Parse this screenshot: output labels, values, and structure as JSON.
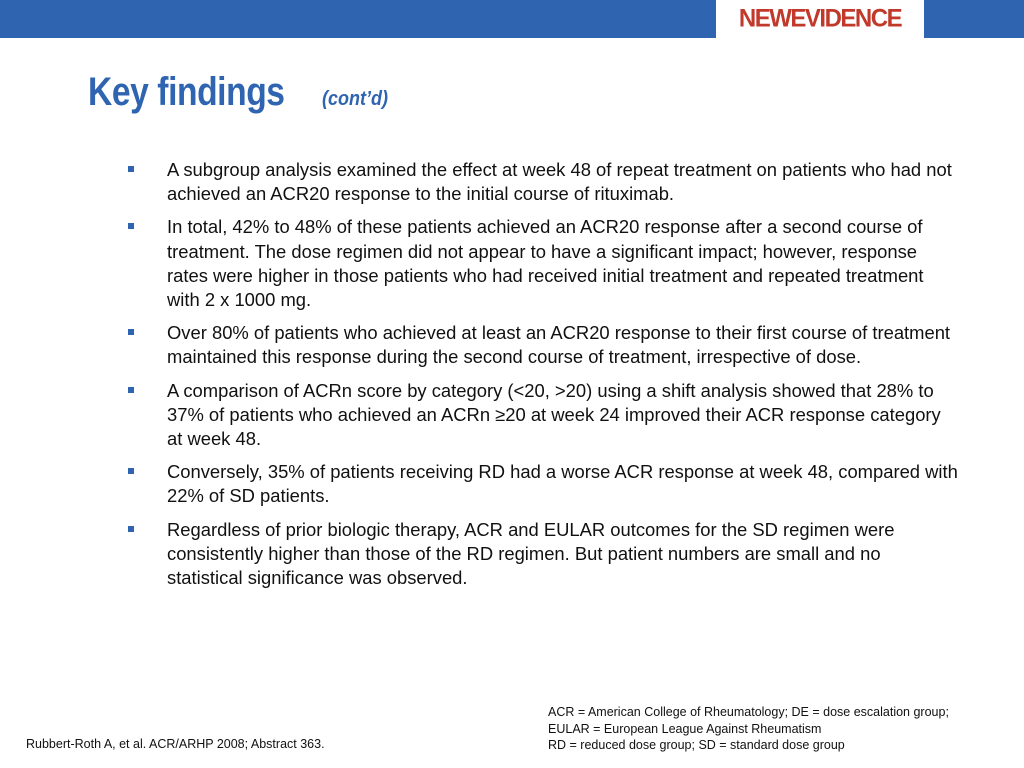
{
  "header": {
    "logo_text": "NEWEVIDENCE",
    "brand_color": "#2f64b0",
    "logo_color": "#c0392b"
  },
  "slide": {
    "title": "Key findings",
    "subtitle": "(cont’d)"
  },
  "bullets": [
    "A subgroup analysis examined the effect at week 48 of repeat treatment on patients who had not achieved an ACR20 response to the initial course of rituximab.",
    "In total, 42% to 48% of these patients achieved an ACR20 response after a second course of treatment. The dose regimen did not appear to have a significant impact; however, response rates were higher in those patients who had received initial treatment and repeated treatment with 2 x 1000 mg.",
    "Over 80% of patients who achieved at least an ACR20 response to their first course of treatment maintained this response during the second course of treatment, irrespective of dose.",
    "A comparison of ACRn score by category (<20, >20) using a shift analysis showed that 28% to 37% of patients who achieved an ACRn ≥20 at week 24 improved their ACR response category at week 48.",
    "Conversely, 35% of patients receiving RD had a worse ACR response at week 48, compared with 22% of SD patients.",
    "Regardless of prior biologic therapy, ACR and EULAR outcomes for the SD regimen were consistently higher than those of the RD regimen. But patient numbers are small and no statistical significance was observed."
  ],
  "footer": {
    "citation": "Rubbert-Roth A, et al. ACR/ARHP 2008; Abstract 363.",
    "abbreviations": [
      "ACR = American College of Rheumatology; DE = dose escalation group;",
      "EULAR = European League Against Rheumatism",
      "RD = reduced dose group; SD = standard dose group"
    ]
  }
}
